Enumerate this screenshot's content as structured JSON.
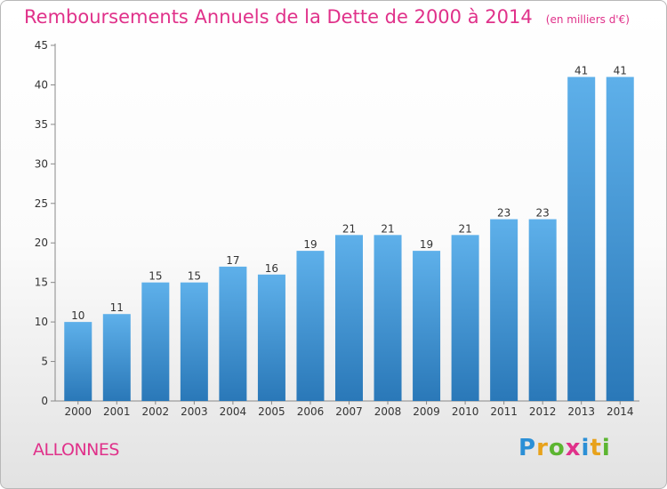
{
  "header": {
    "title": "Remboursements Annuels de la Dette de 2000 à 2014",
    "unit": "(en milliers d'€)"
  },
  "footer": {
    "commune": "ALLONNES",
    "logo_letters": [
      "P",
      "r",
      "o",
      "x",
      "i",
      "t",
      "i"
    ],
    "logo_colors": [
      "#2b8fd6",
      "#e8a21b",
      "#5cb531",
      "#e0318a",
      "#2b8fd6",
      "#e8a21b",
      "#5cb531"
    ]
  },
  "colors": {
    "bar_top": "#5eb0ea",
    "bar_bottom": "#2a78b8",
    "axis": "#888888",
    "tick_text": "#333333"
  },
  "chart_data": {
    "type": "bar",
    "categories": [
      "2000",
      "2001",
      "2002",
      "2003",
      "2004",
      "2005",
      "2006",
      "2007",
      "2008",
      "2009",
      "2010",
      "2011",
      "2012",
      "2013",
      "2014"
    ],
    "values": [
      10,
      11,
      15,
      15,
      17,
      16,
      19,
      21,
      21,
      19,
      21,
      23,
      23,
      41,
      41
    ],
    "ylim": [
      0,
      45
    ],
    "yticks": [
      0,
      5,
      10,
      15,
      20,
      25,
      30,
      35,
      40,
      45
    ],
    "grid": false,
    "xlabel": "",
    "ylabel": ""
  }
}
